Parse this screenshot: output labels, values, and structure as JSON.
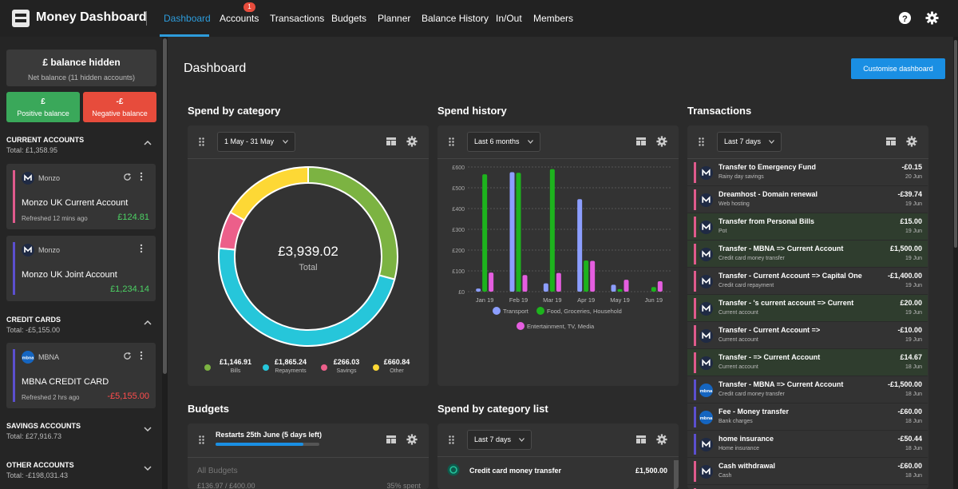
{
  "app": {
    "title": "Money Dashboard"
  },
  "nav": {
    "tabs": [
      {
        "label": "Dashboard"
      },
      {
        "label": "Accounts",
        "badge": "1"
      },
      {
        "label": "Transactions"
      },
      {
        "label": "Budgets"
      },
      {
        "label": "Planner"
      },
      {
        "label": "Balance History"
      },
      {
        "label": "In/Out"
      },
      {
        "label": "Members"
      }
    ]
  },
  "sidebar": {
    "balance_title": "£  balance hidden",
    "balance_sub": "Net balance (11 hidden accounts)",
    "positive": {
      "symbol": "£",
      "label": "Positive balance"
    },
    "negative": {
      "symbol": "-£",
      "label": "Negative balance"
    },
    "sections": [
      {
        "title": "CURRENT ACCOUNTS",
        "total": "Total: £1,358.95"
      },
      {
        "title": "CREDIT CARDS",
        "total": "Total: -£5,155.00"
      },
      {
        "title": "SAVINGS ACCOUNTS",
        "total": "Total: £27,916.73"
      },
      {
        "title": "OTHER ACCOUNTS",
        "total": "Total: -£198,031.43"
      }
    ],
    "accounts": [
      {
        "bank": "Monzo",
        "name": "Monzo UK Current Account",
        "refreshed": "Refreshed 12 mins ago",
        "amount": "£124.81"
      },
      {
        "bank": "Monzo",
        "name": "Monzo UK Joint Account",
        "refreshed": "",
        "amount": "£1,234.14"
      },
      {
        "bank": "MBNA",
        "name": "MBNA CREDIT CARD",
        "refreshed": "Refreshed 2 hrs ago",
        "amount": "-£5,155.00"
      }
    ]
  },
  "main": {
    "page_title": "Dashboard",
    "customise": "Customise dashboard",
    "spend_category": {
      "title": "Spend by category",
      "range": "1 May - 31 May",
      "total_value": "£3,939.02",
      "total_label": "Total",
      "legend": [
        {
          "value": "£1,146.91",
          "label": "Bills",
          "color": "#7cb342"
        },
        {
          "value": "£1,865.24",
          "label": "Repayments",
          "color": "#26c6da"
        },
        {
          "value": "£266.03",
          "label": "Savings",
          "color": "#ec5f8a"
        },
        {
          "value": "£660.84",
          "label": "Other",
          "color": "#fdd835"
        }
      ]
    },
    "spend_history": {
      "title": "Spend history",
      "range": "Last 6 months"
    },
    "transactions": {
      "title": "Transactions",
      "range": "Last 7 days",
      "items": [
        {
          "desc": "Transfer to Emergency Fund",
          "sub": "Rainy day savings",
          "amount": "-£0.15",
          "date": "20 Jun",
          "stripe": "#e05a8c",
          "logo": "monzo",
          "hl": false
        },
        {
          "desc": "Dreamhost - Domain renewal",
          "sub": "Web hosting",
          "amount": "-£39.74",
          "date": "19 Jun",
          "stripe": "#e05a8c",
          "logo": "monzo",
          "hl": false
        },
        {
          "desc": "Transfer from Personal Bills",
          "sub": "Pot",
          "amount": "£15.00",
          "date": "19 Jun",
          "stripe": "#e05a8c",
          "logo": "monzo",
          "hl": true
        },
        {
          "desc": "Transfer - MBNA => Current Account",
          "sub": "Credit card money transfer",
          "amount": "£1,500.00",
          "date": "19 Jun",
          "stripe": "#e05a8c",
          "logo": "monzo",
          "hl": true
        },
        {
          "desc": "Transfer - Current Account => Capital One",
          "sub": "Credit card repayment",
          "amount": "-£1,400.00",
          "date": "19 Jun",
          "stripe": "#e05a8c",
          "logo": "monzo",
          "hl": false
        },
        {
          "desc": "Transfer -             's current account => Current",
          "sub": "Current account",
          "amount": "£20.00",
          "date": "19 Jun",
          "stripe": "#e05a8c",
          "logo": "monzo",
          "hl": true
        },
        {
          "desc": "Transfer - Current Account =>",
          "sub": "Current account",
          "amount": "-£10.00",
          "date": "19 Jun",
          "stripe": "#e05a8c",
          "logo": "monzo",
          "hl": false
        },
        {
          "desc": "Transfer -             => Current Account",
          "sub": "Current account",
          "amount": "£14.67",
          "date": "18 Jun",
          "stripe": "#e05a8c",
          "logo": "monzo",
          "hl": true
        },
        {
          "desc": "Transfer - MBNA => Current Account",
          "sub": "Credit card money transfer",
          "amount": "-£1,500.00",
          "date": "18 Jun",
          "stripe": "#5b4fcf",
          "logo": "mbna",
          "hl": false
        },
        {
          "desc": "Fee - Money transfer",
          "sub": "Bank charges",
          "amount": "-£60.00",
          "date": "18 Jun",
          "stripe": "#5b4fcf",
          "logo": "mbna",
          "hl": false
        },
        {
          "desc": "            home insurance",
          "sub": "Home insurance",
          "amount": "-£50.44",
          "date": "18 Jun",
          "stripe": "#5b4fcf",
          "logo": "monzo",
          "hl": false
        },
        {
          "desc": "Cash withdrawal",
          "sub": "Cash",
          "amount": "-£60.00",
          "date": "18 Jun",
          "stripe": "#e05a8c",
          "logo": "monzo",
          "hl": false
        },
        {
          "desc": "",
          "sub": "",
          "amount": "",
          "date": "",
          "stripe": "#e05a8c",
          "logo": "monzo",
          "hl": false
        }
      ]
    },
    "budgets": {
      "title": "Budgets",
      "restarts": "Restarts 25th June (5 days left)",
      "all": "All Budgets",
      "amounts": "£136.97 / £400.00",
      "percent": "35% spent"
    },
    "spend_list": {
      "title": "Spend by category list",
      "range": "Last 7 days",
      "row_label": "Credit card money transfer",
      "row_amount": "£1,500.00"
    }
  },
  "chart_data": [
    {
      "type": "pie",
      "title": "Spend by category",
      "categories": [
        "Bills",
        "Repayments",
        "Savings",
        "Other"
      ],
      "values": [
        1146.91,
        1865.24,
        266.03,
        660.84
      ],
      "center_text": "£3,939.02"
    },
    {
      "type": "bar",
      "title": "Spend history",
      "categories": [
        "Jan 19",
        "Feb 19",
        "Mar 19",
        "Apr 19",
        "May 19",
        "Jun 19"
      ],
      "ylim": [
        0,
        600
      ],
      "yticks": [
        "£0",
        "£100",
        "£200",
        "£300",
        "£400",
        "£500",
        "£600"
      ],
      "series": [
        {
          "name": "Transport",
          "color": "#8c9eff",
          "values": [
            15,
            575,
            40,
            445,
            33,
            0
          ]
        },
        {
          "name": "Food, Groceries, Household",
          "color": "#1db31d",
          "values": [
            565,
            572,
            590,
            150,
            12,
            22
          ]
        },
        {
          "name": "Entertainment, TV, Media",
          "color": "#e55ee0",
          "values": [
            92,
            80,
            90,
            148,
            57,
            50
          ]
        }
      ]
    }
  ]
}
